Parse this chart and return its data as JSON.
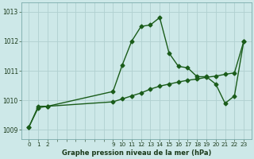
{
  "title": "Graphe pression niveau de la mer (hPa)",
  "bg_color": "#cde8e8",
  "grid_color": "#b0d0d0",
  "line_color": "#1a5c1a",
  "ylim": [
    1008.7,
    1013.3
  ],
  "yticks": [
    1009,
    1010,
    1011,
    1012,
    1013
  ],
  "xtick_labels": [
    "0",
    "1",
    "2",
    "",
    "",
    "",
    "",
    "",
    "",
    "9",
    "10",
    "11",
    "12",
    "13",
    "14",
    "15",
    "16",
    "17",
    "18",
    "19",
    "20",
    "21",
    "22",
    "23"
  ],
  "xtick_positions": [
    0,
    1,
    2,
    3,
    4,
    5,
    6,
    7,
    8,
    9,
    10,
    11,
    12,
    13,
    14,
    15,
    16,
    17,
    18,
    19,
    20,
    21,
    22,
    23
  ],
  "line1_x": [
    0,
    1,
    2,
    9,
    10,
    11,
    12,
    13,
    14,
    15,
    16,
    17,
    18,
    19,
    20,
    21,
    22,
    23
  ],
  "line1_y": [
    1009.1,
    1009.8,
    1009.8,
    1010.3,
    1011.2,
    1012.0,
    1012.5,
    1012.55,
    1012.8,
    1011.6,
    1011.15,
    1011.1,
    1010.8,
    1010.8,
    1010.55,
    1009.9,
    1010.15,
    1012.0
  ],
  "line2_x": [
    0,
    1,
    2,
    9,
    10,
    11,
    12,
    13,
    14,
    15,
    16,
    17,
    18,
    19,
    20,
    21,
    22,
    23
  ],
  "line2_y": [
    1009.1,
    1009.75,
    1009.8,
    1009.95,
    1010.05,
    1010.15,
    1010.25,
    1010.38,
    1010.48,
    1010.55,
    1010.62,
    1010.68,
    1010.72,
    1010.78,
    1010.82,
    1010.88,
    1010.93,
    1012.0
  ],
  "marker_size": 2.5,
  "line_width": 1.0,
  "ylabel_fontsize": 5.5,
  "xlabel_fontsize": 5.2,
  "title_fontsize": 6.0
}
